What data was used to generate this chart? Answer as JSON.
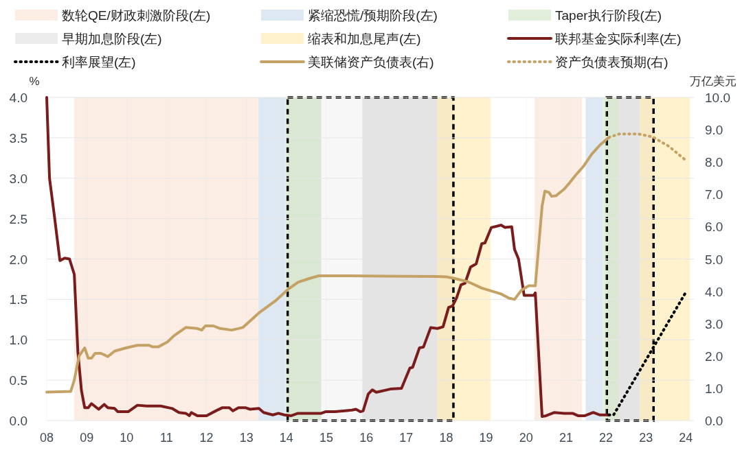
{
  "chart_data": {
    "type": "line",
    "ylabel": "%",
    "y2label": "万亿美元",
    "xlim": [
      8,
      24.2
    ],
    "xticks": [
      {
        "value": 8,
        "label": "08"
      },
      {
        "value": 9,
        "label": "09"
      },
      {
        "value": 10,
        "label": "10"
      },
      {
        "value": 11,
        "label": "11"
      },
      {
        "value": 12,
        "label": "12"
      },
      {
        "value": 13,
        "label": "13"
      },
      {
        "value": 14,
        "label": "14"
      },
      {
        "value": 15,
        "label": "15"
      },
      {
        "value": 16,
        "label": "16"
      },
      {
        "value": 17,
        "label": "17"
      },
      {
        "value": 18,
        "label": "18"
      },
      {
        "value": 19,
        "label": "19"
      },
      {
        "value": 20,
        "label": "20"
      },
      {
        "value": 21,
        "label": "21"
      },
      {
        "value": 22,
        "label": "22"
      },
      {
        "value": 23,
        "label": "23"
      },
      {
        "value": 24,
        "label": "24"
      }
    ],
    "ylim": [
      0,
      4
    ],
    "yticks": [
      {
        "value": 0,
        "label": "0.0"
      },
      {
        "value": 0.5,
        "label": "0.5"
      },
      {
        "value": 1,
        "label": "1.0"
      },
      {
        "value": 1.5,
        "label": "1.5"
      },
      {
        "value": 2,
        "label": "2.0"
      },
      {
        "value": 2.5,
        "label": "2.5"
      },
      {
        "value": 3,
        "label": "3.0"
      },
      {
        "value": 3.5,
        "label": "3.5"
      },
      {
        "value": 4,
        "label": "4.0"
      }
    ],
    "y2lim": [
      0,
      10
    ],
    "y2ticks": [
      {
        "value": 0,
        "label": "0.0"
      },
      {
        "value": 1,
        "label": "1.0"
      },
      {
        "value": 2,
        "label": "2.0"
      },
      {
        "value": 3,
        "label": "3.0"
      },
      {
        "value": 4,
        "label": "4.0"
      },
      {
        "value": 5,
        "label": "5.0"
      },
      {
        "value": 6,
        "label": "6.0"
      },
      {
        "value": 7,
        "label": "7.0"
      },
      {
        "value": 8,
        "label": "8.0"
      },
      {
        "value": 9,
        "label": "9.0"
      },
      {
        "value": 10,
        "label": "10.0"
      }
    ],
    "grid": true,
    "legend": "top",
    "bands": [
      {
        "axis": "x",
        "from": 8.69,
        "to": 13.3,
        "label": "数轮QE/财政刺激阶段(左)",
        "color": "#fcede4"
      },
      {
        "axis": "x",
        "from": 13.3,
        "to": 13.98,
        "label": "紧缩恐慌/预期阶段(左)",
        "color": "#dde8f3"
      },
      {
        "axis": "x",
        "from": 13.98,
        "to": 14.87,
        "label": "Taper执行阶段(左)",
        "color": "#e2efda"
      },
      {
        "axis": "x",
        "from": 15.9,
        "to": 17.78,
        "label": "早期加息阶段(左)",
        "color": "#ececec"
      },
      {
        "axis": "x",
        "from": 17.78,
        "to": 19.11,
        "label": "缩表和加息尾声(左)",
        "color": "#fff2cc"
      },
      {
        "axis": "x",
        "from": 20.21,
        "to": 21.4,
        "color": "#fcede4"
      },
      {
        "axis": "x",
        "from": 21.49,
        "to": 21.92,
        "color": "#dde8f3"
      },
      {
        "axis": "x",
        "from": 21.92,
        "to": 22.31,
        "color": "#e2efda"
      },
      {
        "axis": "x",
        "from": 22.31,
        "to": 22.85,
        "color": "#ececec"
      },
      {
        "axis": "x",
        "from": 22.85,
        "to": 24.1,
        "color": "#fff2cc"
      },
      {
        "axis": "x",
        "from": 14.03,
        "to": 18.18,
        "color": "#000000"
      },
      {
        "axis": "x",
        "from": 22.02,
        "to": 23.19,
        "color": "#000000"
      }
    ],
    "series": [
      {
        "name": "联邦基金实际利率(左)",
        "color": "#7b1c1c",
        "line_style": "solid",
        "x": [
          8.0,
          8.07,
          8.18,
          8.33,
          8.45,
          8.57,
          8.69,
          8.78,
          8.87,
          8.95,
          9.04,
          9.12,
          9.3,
          9.44,
          9.53,
          9.7,
          9.78,
          10.04,
          10.27,
          10.5,
          10.85,
          11.14,
          11.31,
          11.48,
          11.57,
          11.62,
          11.77,
          12.0,
          12.23,
          12.4,
          12.57,
          12.66,
          12.8,
          12.97,
          13.09,
          13.31,
          13.43,
          13.66,
          13.8,
          13.95,
          14.12,
          14.29,
          14.52,
          14.87,
          14.98,
          15.22,
          15.64,
          15.74,
          15.85,
          15.92,
          16.05,
          16.15,
          16.25,
          16.6,
          16.88,
          17.09,
          17.16,
          17.33,
          17.43,
          17.61,
          17.78,
          17.92,
          18.06,
          18.16,
          18.26,
          18.37,
          18.47,
          18.61,
          18.75,
          18.89,
          18.97,
          19.13,
          19.3,
          19.37,
          19.47,
          19.64,
          19.71,
          19.81,
          19.95,
          20.19,
          20.23,
          20.4,
          20.5,
          20.71,
          20.95,
          21.16,
          21.3,
          21.47,
          21.68,
          21.85,
          22.07
        ],
        "values": [
          4.0,
          3.0,
          2.58,
          1.98,
          2.01,
          2.0,
          1.81,
          0.85,
          0.37,
          0.16,
          0.16,
          0.21,
          0.14,
          0.2,
          0.16,
          0.15,
          0.11,
          0.11,
          0.19,
          0.18,
          0.18,
          0.15,
          0.1,
          0.09,
          0.06,
          0.1,
          0.06,
          0.06,
          0.12,
          0.16,
          0.16,
          0.12,
          0.16,
          0.16,
          0.14,
          0.15,
          0.1,
          0.07,
          0.09,
          0.07,
          0.06,
          0.09,
          0.09,
          0.09,
          0.11,
          0.11,
          0.13,
          0.14,
          0.11,
          0.12,
          0.33,
          0.38,
          0.35,
          0.39,
          0.4,
          0.65,
          0.66,
          0.9,
          0.91,
          1.15,
          1.14,
          1.16,
          1.4,
          1.42,
          1.52,
          1.68,
          1.7,
          1.9,
          1.94,
          2.19,
          2.2,
          2.39,
          2.41,
          2.42,
          2.39,
          2.4,
          2.12,
          2.0,
          1.55,
          1.55,
          1.58,
          0.05,
          0.06,
          0.1,
          0.09,
          0.09,
          0.06,
          0.06,
          0.1,
          0.07,
          0.07
        ]
      },
      {
        "name": "利率展望(左)",
        "color": "#000000",
        "line_style": "dotted",
        "x": [
          22.07,
          22.19,
          24.0
        ],
        "values": [
          0.07,
          0.07,
          1.59
        ]
      },
      {
        "name": "美联储资产负债表(右)",
        "color": "#c4a265",
        "line_style": "solid",
        "axis": "y2",
        "x": [
          8.0,
          8.6,
          8.69,
          8.81,
          8.95,
          9.04,
          9.12,
          9.21,
          9.36,
          9.53,
          9.7,
          9.99,
          10.27,
          10.56,
          10.65,
          10.79,
          11.02,
          11.19,
          11.48,
          11.77,
          11.88,
          11.97,
          12.17,
          12.34,
          12.63,
          12.91,
          13.31,
          13.72,
          14.06,
          14.29,
          14.58,
          14.81,
          15.44,
          16.5,
          17.78,
          17.99,
          18.2,
          18.54,
          18.89,
          19.16,
          19.37,
          19.57,
          19.71,
          19.88,
          20.06,
          20.23,
          20.4,
          20.47,
          20.57,
          20.64,
          20.75,
          20.95,
          21.09,
          21.23,
          21.43,
          21.64,
          21.85,
          22.07
        ],
        "values": [
          0.88,
          0.9,
          1.25,
          2.0,
          2.25,
          1.93,
          1.93,
          2.08,
          2.08,
          1.98,
          2.15,
          2.25,
          2.33,
          2.33,
          2.28,
          2.28,
          2.43,
          2.63,
          2.88,
          2.85,
          2.8,
          2.93,
          2.93,
          2.85,
          2.8,
          2.88,
          3.33,
          3.7,
          4.08,
          4.28,
          4.4,
          4.48,
          4.48,
          4.47,
          4.46,
          4.45,
          4.4,
          4.3,
          4.1,
          4.0,
          3.92,
          3.79,
          3.75,
          4.03,
          4.17,
          4.17,
          6.64,
          7.1,
          7.06,
          6.94,
          6.96,
          7.16,
          7.36,
          7.58,
          7.86,
          8.24,
          8.53,
          8.76
        ]
      },
      {
        "name": "资产负债表预期(右)",
        "color": "#c4a265",
        "line_style": "dotted",
        "axis": "y2",
        "x": [
          22.07,
          22.33,
          22.81,
          23.16,
          23.57,
          24.0
        ],
        "values": [
          8.76,
          8.87,
          8.87,
          8.78,
          8.49,
          8.05
        ]
      }
    ]
  }
}
